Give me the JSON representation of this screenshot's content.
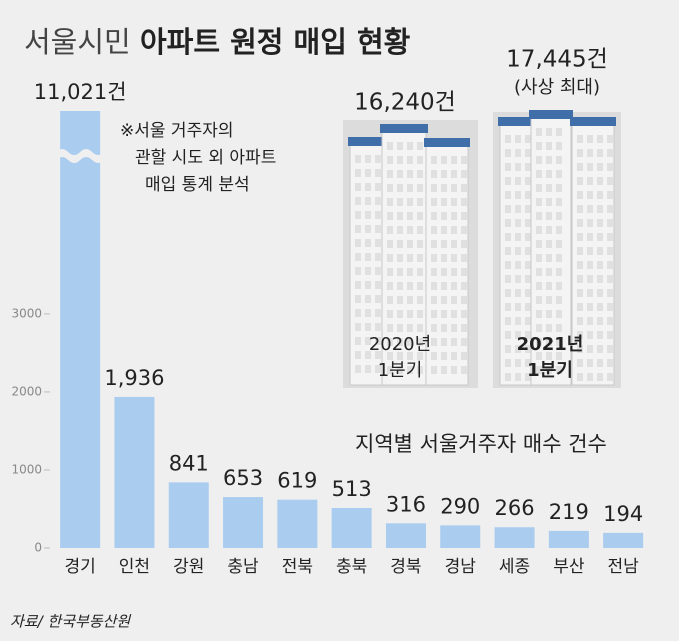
{
  "chart_data": {
    "type": "bar",
    "title_light": "서울시민",
    "title_bold": "아파트 원정 매입 현황",
    "subtitle": "지역별 서울거주자 매수 건수",
    "note": [
      "※서울 거주자의",
      "관할 시도 외 아파트",
      "매입 통계 분석"
    ],
    "source": "자료/ 한국부동산원",
    "categories": [
      "경기",
      "인천",
      "강원",
      "충남",
      "전북",
      "충북",
      "경북",
      "경남",
      "세종",
      "부산",
      "전남"
    ],
    "values": [
      11021,
      1936,
      841,
      653,
      619,
      513,
      316,
      290,
      266,
      219,
      194
    ],
    "value_labels": [
      "11,021건",
      "1,936",
      "841",
      "653",
      "619",
      "513",
      "316",
      "290",
      "266",
      "219",
      "194"
    ],
    "color": "#a9ccef",
    "ylim": [
      0,
      5600
    ],
    "yticks": [
      0,
      1000,
      2000,
      3000
    ],
    "axis_break": true,
    "inset": [
      {
        "total": "16,240건",
        "period": [
          "2020년",
          "1분기"
        ]
      },
      {
        "total": "17,445건",
        "remark": "(사상 최대)",
        "period": [
          "2021년",
          "1분기"
        ]
      }
    ]
  }
}
